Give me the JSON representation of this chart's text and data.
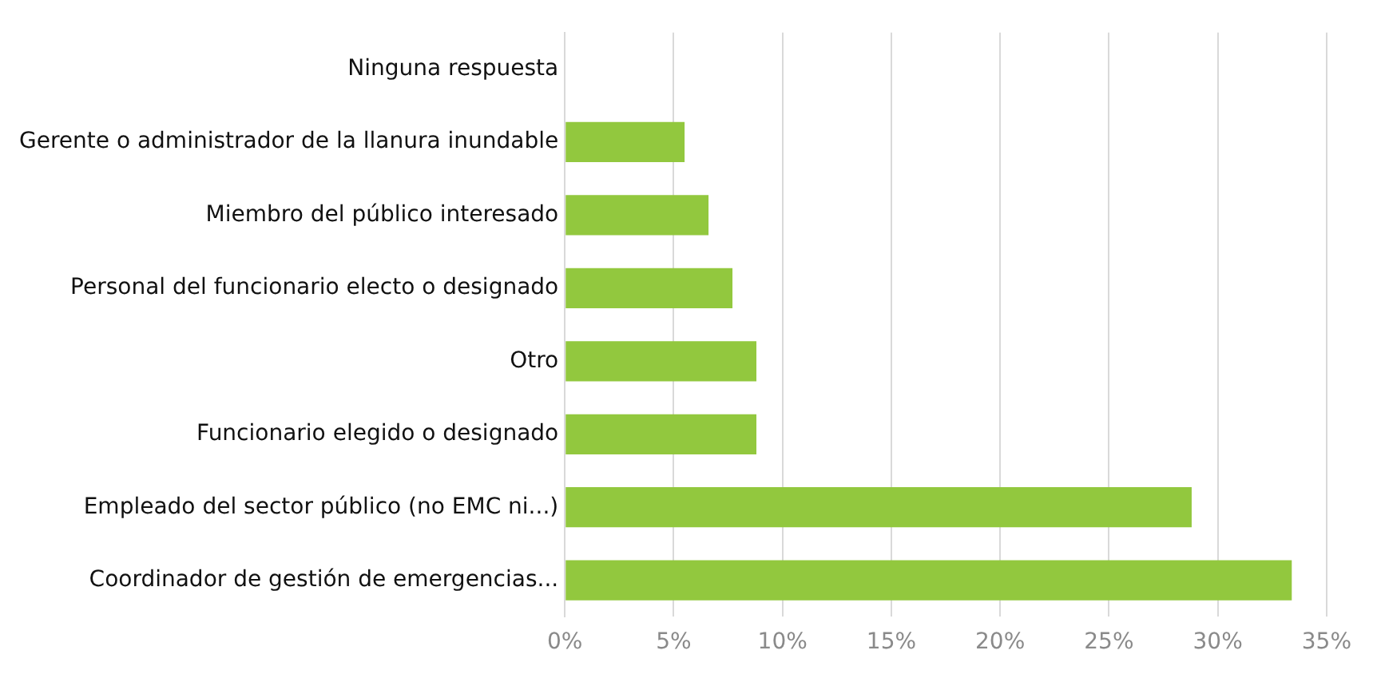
{
  "chart_data": {
    "type": "bar",
    "orientation": "horizontal",
    "categories": [
      "Ninguna respuesta",
      "Gerente o administrador de la llanura inundable",
      "Miembro del público interesado",
      "Personal del funcionario electo o designado",
      "Otro",
      "Funcionario elegido o designado",
      "Empleado del sector público (no EMC ni...)",
      "Coordinador de gestión de emergencias..."
    ],
    "values": [
      0,
      5.5,
      6.6,
      7.7,
      8.8,
      8.8,
      28.8,
      33.4
    ],
    "color": "#92c83e",
    "xlim": [
      0,
      35
    ],
    "xticks": [
      {
        "value": 0,
        "label": "0%"
      },
      {
        "value": 5,
        "label": "5%"
      },
      {
        "value": 10,
        "label": "10%"
      },
      {
        "value": 15,
        "label": "15%"
      },
      {
        "value": 20,
        "label": "20%"
      },
      {
        "value": 25,
        "label": "25%"
      },
      {
        "value": 30,
        "label": "30%"
      },
      {
        "value": 35,
        "label": "35%"
      }
    ],
    "grid": "x",
    "legend": false
  }
}
